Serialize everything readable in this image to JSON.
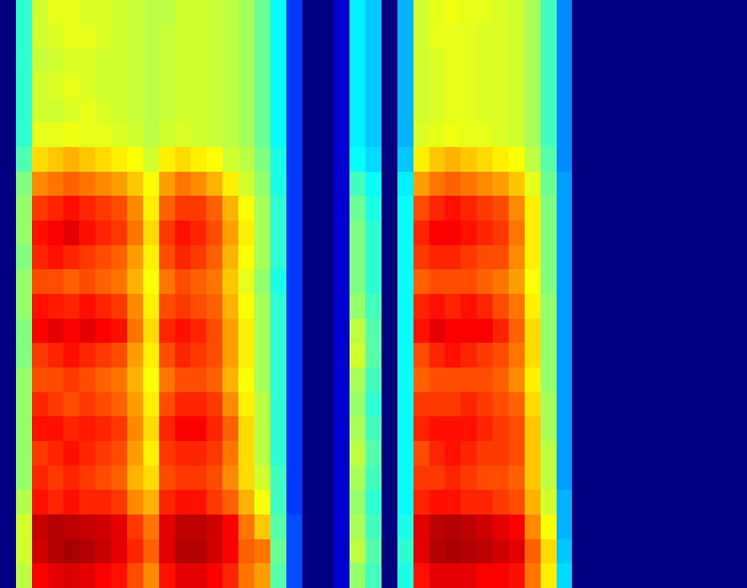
{
  "chart_data": {
    "type": "heatmap",
    "tick_labels": false,
    "zlim": [
      0,
      100
    ],
    "values": [
      [
        0,
        0,
        0,
        0,
        0,
        0,
        0,
        0,
        0,
        0,
        0,
        0,
        0,
        0,
        0,
        0,
        0,
        0,
        0,
        0,
        0,
        0,
        0,
        0
      ],
      [
        42,
        42,
        42,
        42,
        42,
        42,
        45,
        50,
        52,
        52,
        50,
        52,
        52,
        50,
        50,
        52,
        52,
        52,
        52,
        52,
        55,
        58,
        58,
        56
      ],
      [
        58,
        58,
        57,
        58,
        58,
        60,
        66,
        74,
        82,
        86,
        84,
        80,
        86,
        88,
        82,
        80,
        84,
        86,
        82,
        84,
        86,
        93,
        92,
        88
      ],
      [
        60,
        59,
        58,
        59,
        58,
        60,
        68,
        76,
        84,
        88,
        86,
        80,
        85,
        90,
        84,
        80,
        82,
        86,
        84,
        82,
        84,
        95,
        95,
        90
      ],
      [
        60,
        60,
        59,
        60,
        59,
        61,
        70,
        78,
        86,
        90,
        84,
        78,
        84,
        88,
        86,
        82,
        80,
        84,
        86,
        84,
        86,
        94,
        96,
        91
      ],
      [
        59,
        60,
        59,
        59,
        60,
        60,
        68,
        76,
        84,
        86,
        82,
        80,
        86,
        90,
        84,
        80,
        82,
        85,
        84,
        82,
        84,
        93,
        95,
        90
      ],
      [
        59,
        59,
        58,
        58,
        59,
        60,
        66,
        74,
        82,
        84,
        80,
        78,
        84,
        88,
        82,
        78,
        80,
        84,
        82,
        80,
        84,
        92,
        93,
        88
      ],
      [
        58,
        58,
        58,
        58,
        58,
        59,
        64,
        72,
        80,
        82,
        78,
        76,
        82,
        86,
        80,
        76,
        78,
        82,
        80,
        78,
        82,
        90,
        90,
        86
      ],
      [
        57,
        57,
        57,
        57,
        57,
        58,
        62,
        68,
        74,
        76,
        72,
        70,
        74,
        76,
        72,
        70,
        72,
        74,
        72,
        70,
        74,
        82,
        84,
        80
      ],
      [
        56,
        56,
        56,
        56,
        56,
        56,
        58,
        62,
        64,
        66,
        64,
        62,
        64,
        66,
        64,
        62,
        64,
        66,
        64,
        66,
        70,
        76,
        78,
        74
      ],
      [
        56,
        57,
        57,
        57,
        57,
        58,
        64,
        72,
        78,
        82,
        80,
        76,
        80,
        84,
        80,
        76,
        80,
        84,
        82,
        80,
        84,
        90,
        90,
        86
      ],
      [
        58,
        58,
        58,
        58,
        58,
        59,
        66,
        76,
        82,
        86,
        84,
        80,
        82,
        86,
        84,
        80,
        84,
        88,
        84,
        82,
        86,
        94,
        95,
        90
      ],
      [
        58,
        58,
        58,
        58,
        58,
        58,
        64,
        74,
        82,
        84,
        82,
        78,
        80,
        84,
        82,
        80,
        84,
        88,
        84,
        82,
        86,
        94,
        95,
        90
      ],
      [
        57,
        57,
        57,
        57,
        57,
        57,
        62,
        70,
        78,
        80,
        78,
        76,
        78,
        80,
        80,
        78,
        82,
        84,
        82,
        80,
        82,
        92,
        92,
        88
      ],
      [
        56,
        56,
        56,
        56,
        56,
        56,
        58,
        64,
        70,
        72,
        70,
        68,
        70,
        72,
        72,
        70,
        74,
        78,
        76,
        74,
        78,
        88,
        88,
        84
      ],
      [
        54,
        54,
        54,
        54,
        54,
        54,
        56,
        58,
        62,
        64,
        62,
        60,
        62,
        64,
        64,
        62,
        64,
        66,
        66,
        66,
        70,
        76,
        78,
        76
      ],
      [
        48,
        48,
        48,
        48,
        48,
        48,
        50,
        52,
        54,
        54,
        54,
        52,
        54,
        54,
        54,
        54,
        56,
        56,
        56,
        58,
        62,
        68,
        76,
        72
      ],
      [
        38,
        38,
        38,
        38,
        38,
        38,
        40,
        40,
        42,
        42,
        42,
        40,
        42,
        42,
        42,
        42,
        42,
        42,
        42,
        44,
        44,
        46,
        48,
        46
      ],
      [
        18,
        18,
        18,
        18,
        18,
        18,
        18,
        18,
        18,
        18,
        18,
        18,
        18,
        18,
        18,
        18,
        18,
        18,
        18,
        18,
        18,
        20,
        20,
        20
      ],
      [
        0,
        0,
        0,
        0,
        0,
        0,
        0,
        0,
        0,
        0,
        0,
        0,
        0,
        0,
        0,
        0,
        0,
        0,
        0,
        0,
        0,
        0,
        0,
        0
      ],
      [
        0,
        0,
        0,
        0,
        0,
        0,
        0,
        0,
        0,
        0,
        0,
        0,
        0,
        0,
        0,
        0,
        0,
        0,
        0,
        0,
        0,
        0,
        0,
        0
      ],
      [
        8,
        8,
        8,
        8,
        8,
        8,
        8,
        8,
        8,
        8,
        8,
        8,
        8,
        8,
        8,
        8,
        8,
        8,
        8,
        8,
        8,
        8,
        8,
        8
      ],
      [
        36,
        36,
        36,
        36,
        36,
        36,
        38,
        44,
        48,
        50,
        50,
        50,
        52,
        56,
        58,
        54,
        52,
        54,
        56,
        54,
        52,
        54,
        56,
        52
      ],
      [
        32,
        32,
        32,
        32,
        32,
        32,
        34,
        38,
        40,
        42,
        42,
        42,
        44,
        46,
        46,
        44,
        42,
        44,
        46,
        44,
        42,
        44,
        46,
        44
      ],
      [
        0,
        0,
        0,
        0,
        0,
        0,
        0,
        0,
        0,
        0,
        0,
        0,
        0,
        0,
        0,
        0,
        0,
        0,
        0,
        0,
        0,
        0,
        0,
        0
      ],
      [
        30,
        30,
        30,
        30,
        30,
        30,
        32,
        36,
        38,
        38,
        38,
        38,
        38,
        38,
        38,
        38,
        38,
        38,
        38,
        38,
        38,
        40,
        42,
        40
      ],
      [
        58,
        58,
        58,
        58,
        58,
        59,
        64,
        72,
        80,
        84,
        82,
        78,
        84,
        86,
        80,
        78,
        82,
        84,
        80,
        82,
        84,
        90,
        90,
        86
      ],
      [
        60,
        60,
        59,
        59,
        59,
        60,
        68,
        76,
        84,
        88,
        84,
        80,
        86,
        90,
        84,
        80,
        82,
        86,
        84,
        82,
        86,
        94,
        95,
        90
      ],
      [
        61,
        60,
        60,
        60,
        60,
        61,
        70,
        78,
        86,
        88,
        84,
        80,
        84,
        88,
        86,
        80,
        82,
        86,
        86,
        84,
        86,
        95,
        96,
        90
      ],
      [
        60,
        60,
        60,
        60,
        60,
        60,
        68,
        76,
        84,
        86,
        82,
        80,
        86,
        88,
        84,
        80,
        84,
        86,
        84,
        82,
        84,
        94,
        95,
        90
      ],
      [
        60,
        59,
        59,
        59,
        59,
        60,
        66,
        74,
        82,
        84,
        80,
        78,
        84,
        88,
        82,
        80,
        82,
        84,
        82,
        80,
        84,
        92,
        94,
        88
      ],
      [
        59,
        59,
        59,
        59,
        59,
        59,
        64,
        72,
        80,
        82,
        80,
        76,
        80,
        84,
        80,
        78,
        80,
        82,
        82,
        80,
        82,
        90,
        92,
        88
      ],
      [
        58,
        58,
        58,
        58,
        58,
        58,
        62,
        68,
        74,
        76,
        74,
        72,
        76,
        78,
        76,
        74,
        78,
        80,
        80,
        78,
        80,
        88,
        90,
        86
      ],
      [
        54,
        54,
        54,
        54,
        54,
        54,
        56,
        60,
        64,
        64,
        64,
        62,
        64,
        66,
        66,
        64,
        66,
        68,
        68,
        68,
        70,
        74,
        78,
        76
      ],
      [
        44,
        44,
        44,
        44,
        44,
        44,
        46,
        48,
        50,
        50,
        50,
        50,
        52,
        52,
        52,
        52,
        54,
        54,
        56,
        56,
        58,
        62,
        66,
        64
      ],
      [
        26,
        26,
        26,
        26,
        26,
        26,
        26,
        28,
        28,
        28,
        28,
        28,
        28,
        28,
        28,
        28,
        28,
        28,
        28,
        28,
        30,
        30,
        32,
        34
      ],
      [
        0,
        0,
        0,
        0,
        0,
        0,
        0,
        0,
        0,
        0,
        0,
        0,
        0,
        0,
        0,
        0,
        0,
        0,
        0,
        0,
        0,
        0,
        0,
        0
      ],
      [
        0,
        0,
        0,
        0,
        0,
        0,
        0,
        0,
        0,
        0,
        0,
        0,
        0,
        0,
        0,
        0,
        0,
        0,
        0,
        0,
        0,
        0,
        0,
        0
      ],
      [
        0,
        0,
        0,
        0,
        0,
        0,
        0,
        0,
        0,
        0,
        0,
        0,
        0,
        0,
        0,
        0,
        0,
        0,
        0,
        0,
        0,
        0,
        0,
        0
      ],
      [
        0,
        0,
        0,
        0,
        0,
        0,
        0,
        0,
        0,
        0,
        0,
        0,
        0,
        0,
        0,
        0,
        0,
        0,
        0,
        0,
        0,
        0,
        0,
        0
      ],
      [
        0,
        0,
        0,
        0,
        0,
        0,
        0,
        0,
        0,
        0,
        0,
        0,
        0,
        0,
        0,
        0,
        0,
        0,
        0,
        0,
        0,
        0,
        0,
        0
      ],
      [
        0,
        0,
        0,
        0,
        0,
        0,
        0,
        0,
        0,
        0,
        0,
        0,
        0,
        0,
        0,
        0,
        0,
        0,
        0,
        0,
        0,
        0,
        0,
        0
      ],
      [
        0,
        0,
        0,
        0,
        0,
        0,
        0,
        0,
        0,
        0,
        0,
        0,
        0,
        0,
        0,
        0,
        0,
        0,
        0,
        0,
        0,
        0,
        0,
        0
      ],
      [
        0,
        0,
        0,
        0,
        0,
        0,
        0,
        0,
        0,
        0,
        0,
        0,
        0,
        0,
        0,
        0,
        0,
        0,
        0,
        0,
        0,
        0,
        0,
        0
      ],
      [
        0,
        0,
        0,
        0,
        0,
        0,
        0,
        0,
        0,
        0,
        0,
        0,
        0,
        0,
        0,
        0,
        0,
        0,
        0,
        0,
        0,
        0,
        0,
        0
      ],
      [
        0,
        0,
        0,
        0,
        0,
        0,
        0,
        0,
        0,
        0,
        0,
        0,
        0,
        0,
        0,
        0,
        0,
        0,
        0,
        0,
        0,
        0,
        0,
        0
      ],
      [
        0,
        0,
        0,
        0,
        0,
        0,
        0,
        0,
        0,
        0,
        0,
        0,
        0,
        0,
        0,
        0,
        0,
        0,
        0,
        0,
        0,
        0,
        0,
        0
      ]
    ]
  }
}
